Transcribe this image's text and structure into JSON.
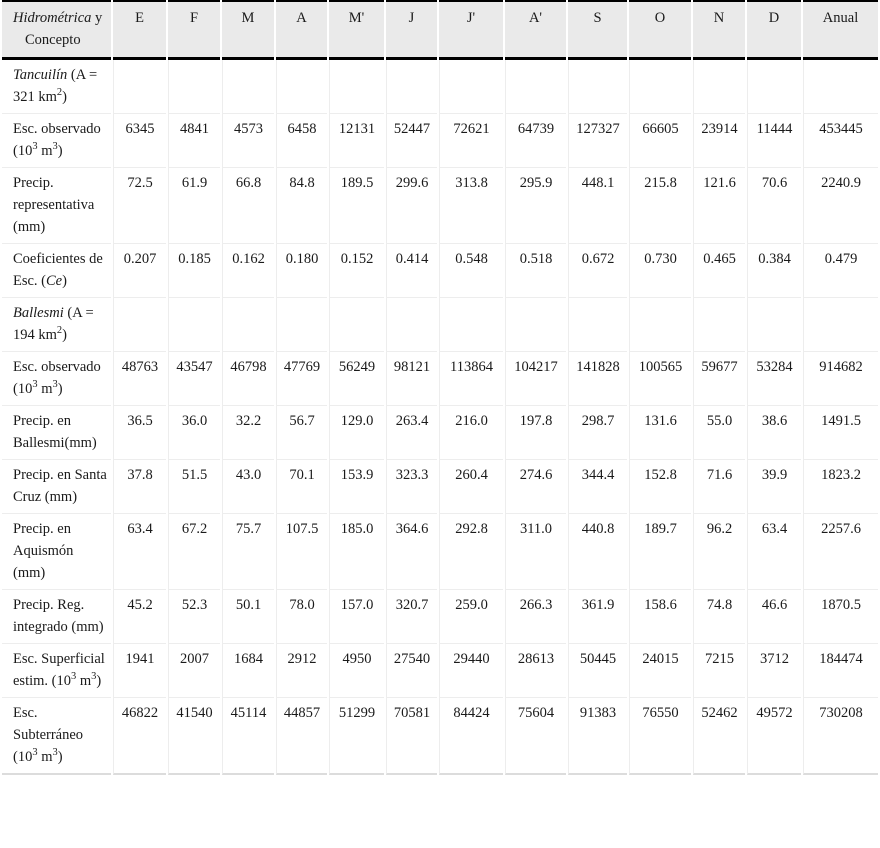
{
  "colors": {
    "header_bg": "#eaeaea",
    "heavy_rule": "#000000",
    "grid_line": "#ededed",
    "bottom_rule": "#dcdcdc",
    "text": "#1a1a1a"
  },
  "table": {
    "corner": {
      "line1": "_Hidrométrica_ y",
      "line2": "Concepto"
    },
    "columns": [
      "E",
      "F",
      "M",
      "A",
      "M'",
      "J",
      "J'",
      "A'",
      "S",
      "O",
      "N",
      "D",
      "Anual"
    ],
    "rows": [
      {
        "label": "_Tancuilín_ (A = 321 km^2^)",
        "section": true,
        "values": [
          "",
          "",
          "",
          "",
          "",
          "",
          "",
          "",
          "",
          "",
          "",
          "",
          ""
        ]
      },
      {
        "label": "Esc. observado (10^3^ m^3^)",
        "section": false,
        "values": [
          "6345",
          "4841",
          "4573",
          "6458",
          "12131",
          "52447",
          "72621",
          "64739",
          "127327",
          "66605",
          "23914",
          "11444",
          "453445"
        ]
      },
      {
        "label": "Precip. representativa (mm)",
        "section": false,
        "values": [
          "72.5",
          "61.9",
          "66.8",
          "84.8",
          "189.5",
          "299.6",
          "313.8",
          "295.9",
          "448.1",
          "215.8",
          "121.6",
          "70.6",
          "2240.9"
        ]
      },
      {
        "label": "Coeficientes de Esc. (_Ce_)",
        "section": false,
        "values": [
          "0.207",
          "0.185",
          "0.162",
          "0.180",
          "0.152",
          "0.414",
          "0.548",
          "0.518",
          "0.672",
          "0.730",
          "0.465",
          "0.384",
          "0.479"
        ]
      },
      {
        "label": "_Ballesmi_ (A = 194 km^2^)",
        "section": true,
        "values": [
          "",
          "",
          "",
          "",
          "",
          "",
          "",
          "",
          "",
          "",
          "",
          "",
          ""
        ]
      },
      {
        "label": "Esc. observado (10^3^ m^3^)",
        "section": false,
        "values": [
          "48763",
          "43547",
          "46798",
          "47769",
          "56249",
          "98121",
          "113864",
          "104217",
          "141828",
          "100565",
          "59677",
          "53284",
          "914682"
        ]
      },
      {
        "label": "Precip. en Ballesmi(mm)",
        "section": false,
        "values": [
          "36.5",
          "36.0",
          "32.2",
          "56.7",
          "129.0",
          "263.4",
          "216.0",
          "197.8",
          "298.7",
          "131.6",
          "55.0",
          "38.6",
          "1491.5"
        ]
      },
      {
        "label": "Precip. en Santa Cruz (mm)",
        "section": false,
        "values": [
          "37.8",
          "51.5",
          "43.0",
          "70.1",
          "153.9",
          "323.3",
          "260.4",
          "274.6",
          "344.4",
          "152.8",
          "71.6",
          "39.9",
          "1823.2"
        ]
      },
      {
        "label": "Precip. en Aquismón (mm)",
        "section": false,
        "values": [
          "63.4",
          "67.2",
          "75.7",
          "107.5",
          "185.0",
          "364.6",
          "292.8",
          "311.0",
          "440.8",
          "189.7",
          "96.2",
          "63.4",
          "2257.6"
        ]
      },
      {
        "label": "Precip. Reg. integrado (mm)",
        "section": false,
        "values": [
          "45.2",
          "52.3",
          "50.1",
          "78.0",
          "157.0",
          "320.7",
          "259.0",
          "266.3",
          "361.9",
          "158.6",
          "74.8",
          "46.6",
          "1870.5"
        ]
      },
      {
        "label": "Esc. Superficial estim. (10^3^ m^3^)",
        "section": false,
        "values": [
          "1941",
          "2007",
          "1684",
          "2912",
          "4950",
          "27540",
          "29440",
          "28613",
          "50445",
          "24015",
          "7215",
          "3712",
          "184474"
        ]
      },
      {
        "label": "Esc. Subterráneo (10^3^ m^3^)",
        "section": false,
        "values": [
          "46822",
          "41540",
          "45114",
          "44857",
          "51299",
          "70581",
          "84424",
          "75604",
          "91383",
          "76550",
          "52462",
          "49572",
          "730208"
        ]
      }
    ]
  }
}
